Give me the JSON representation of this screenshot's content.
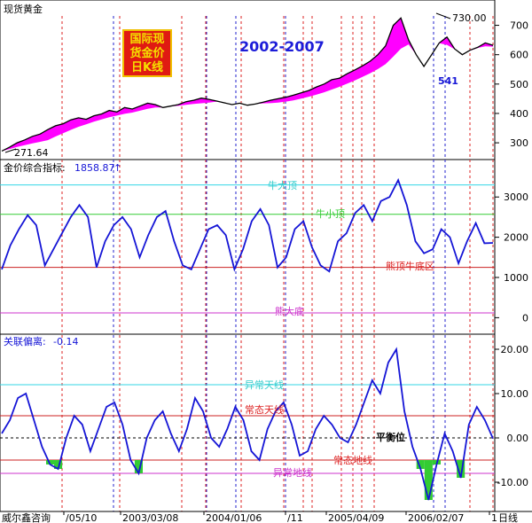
{
  "panel_titles": {
    "price": "现货黄金",
    "index": "金价综合指标:",
    "index_value": "1858.87",
    "index_arrow": "↑",
    "deviation": "关联偏离:",
    "deviation_value": "-0.14"
  },
  "headline": "2002-2007",
  "logo_lines": [
    "国际现",
    "货金价",
    "日K线"
  ],
  "annotations": {
    "high": "730.00",
    "low": "271.64",
    "pivot": "541"
  },
  "index_levels": {
    "bull_big_top": "牛大顶",
    "bull_small_top": "牛小顶",
    "bear_top_bull_bottom": "熊顶牛底区",
    "bear_big_bottom": "熊大底"
  },
  "deviation_levels": {
    "abnormal_sky": "异常天线",
    "normal_sky": "常态天线",
    "balance": "平衡位",
    "normal_ground": "常态地线",
    "abnormal_ground": "异常地线"
  },
  "footer": {
    "company": "威尔鑫咨询",
    "dates": [
      "/05/10",
      "2003/03/08",
      "2004/01/06",
      "/11",
      "2005/04/09",
      "2006/02/07",
      "1"
    ],
    "period": "日线"
  },
  "colors": {
    "price_line": "#000000",
    "price_fill": "#ff00ff",
    "index_line": "#1515d6",
    "cyan_level": "#33d6e6",
    "green_level": "#33cc33",
    "red_level": "#cc2222",
    "magenta_level": "#cc33cc",
    "vline_red": "#dd2222",
    "vline_blue": "#2222cc",
    "label_text_red": "#dd2222",
    "label_text_cyan": "#33cccc",
    "label_text_green": "#33cc33",
    "label_text_magenta": "#cc33cc"
  },
  "chart_data": [
    {
      "type": "line",
      "title": "现货黄金",
      "ylim": [
        255,
        750
      ],
      "yticks": [
        300,
        400,
        500,
        600,
        700
      ],
      "series": [
        {
          "values": [
            272,
            285,
            300,
            310,
            322,
            330,
            345,
            358,
            365,
            378,
            385,
            380,
            392,
            398,
            410,
            405,
            420,
            415,
            425,
            435,
            430,
            420,
            425,
            430,
            440,
            445,
            452,
            448,
            442,
            436,
            430,
            435,
            428,
            432,
            438,
            445,
            450,
            455,
            462,
            470,
            478,
            490,
            500,
            515,
            520,
            535,
            548,
            562,
            578,
            600,
            630,
            700,
            725,
            650,
            600,
            560,
            600,
            640,
            660,
            620,
            600,
            615,
            625,
            640,
            632
          ]
        }
      ]
    },
    {
      "type": "line",
      "title": "金价综合指标",
      "ylim": [
        -300,
        3600
      ],
      "yticks": [
        0,
        1000,
        2000,
        3000
      ],
      "levels": [
        3300,
        2570,
        1250,
        120
      ],
      "series": [
        {
          "values": [
            1200,
            1800,
            2200,
            2550,
            2300,
            1300,
            1700,
            2100,
            2500,
            2800,
            2500,
            1250,
            1900,
            2300,
            2500,
            2200,
            1500,
            2050,
            2500,
            2650,
            1900,
            1300,
            1200,
            1700,
            2200,
            2300,
            2050,
            1200,
            1700,
            2400,
            2700,
            2300,
            1250,
            1500,
            2200,
            2400,
            1750,
            1300,
            1150,
            1900,
            2100,
            2600,
            2800,
            2400,
            2900,
            3000,
            3420,
            2800,
            1900,
            1600,
            1700,
            2200,
            2000,
            1350,
            1900,
            2350,
            1850,
            1860
          ]
        }
      ]
    },
    {
      "type": "line",
      "title": "关联偏离",
      "ylim": [
        -16,
        22
      ],
      "yticks": [
        -10,
        0,
        10,
        20
      ],
      "levels": [
        12,
        5,
        0,
        -5,
        -8
      ],
      "series": [
        {
          "values": [
            1,
            4,
            9,
            10,
            4,
            -2,
            -6,
            -7,
            0,
            5,
            3,
            -3,
            2,
            7,
            8,
            3,
            -5,
            -8,
            0,
            4,
            6,
            1,
            -3,
            2,
            9,
            6,
            0,
            -2,
            2,
            7,
            4,
            -3,
            -5,
            2,
            6,
            8,
            3,
            -4,
            -3,
            2,
            5,
            3,
            0,
            -1,
            3,
            8,
            13,
            10,
            17,
            20,
            6,
            -2,
            -7,
            -14,
            -6,
            1,
            -3,
            -9,
            3,
            7,
            4,
            -0.14
          ]
        }
      ]
    }
  ]
}
